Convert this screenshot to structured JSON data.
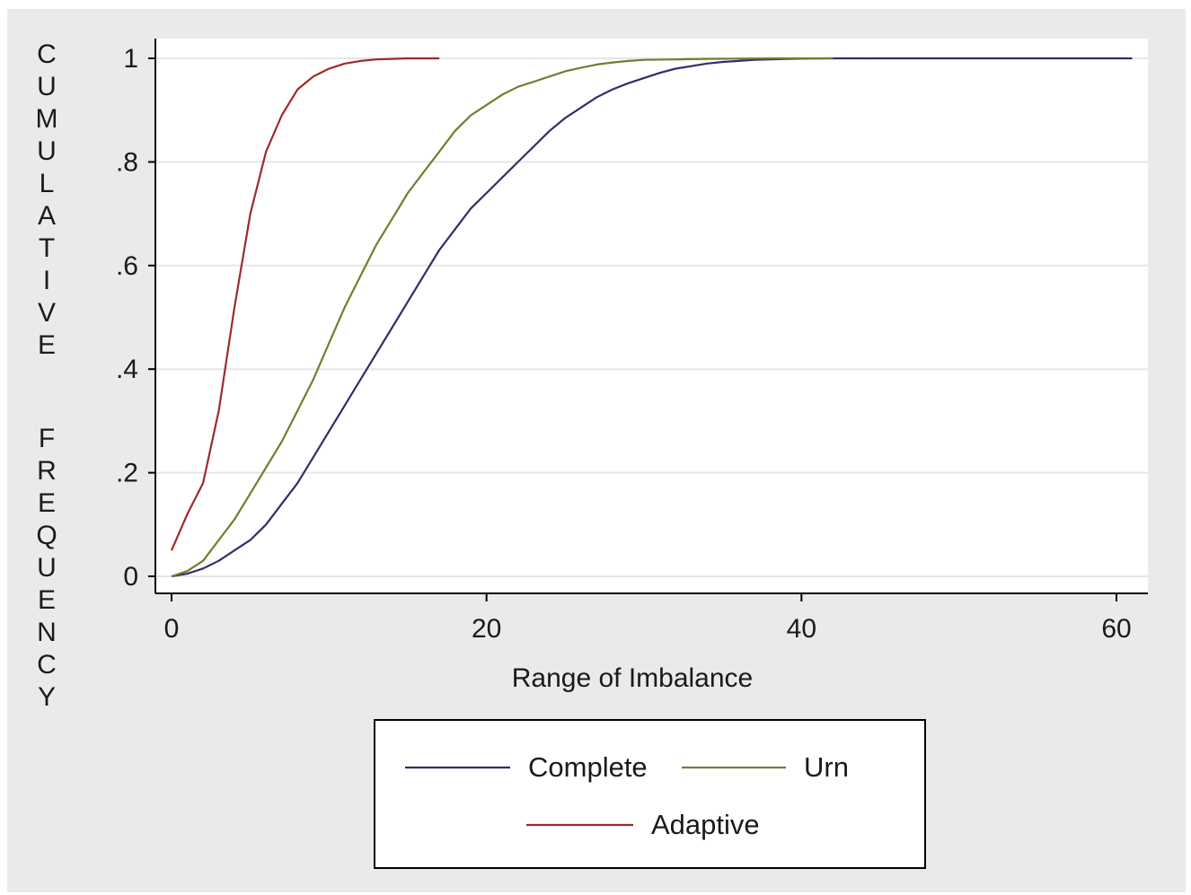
{
  "chart_data": {
    "type": "line",
    "title": "",
    "xlabel": "Range of Imbalance",
    "ylabel": "CUMULATIVE FREQUENCY",
    "xlim": [
      0,
      62
    ],
    "ylim": [
      0,
      1
    ],
    "xticks": [
      0,
      20,
      40,
      60
    ],
    "xtick_labels": [
      "0",
      "20",
      "40",
      "60"
    ],
    "yticks": [
      0,
      0.2,
      0.4,
      0.6,
      0.8,
      1
    ],
    "ytick_labels": [
      "0",
      ".2",
      ".4",
      ".6",
      ".8",
      "1"
    ],
    "grid": true,
    "legend_position": "bottom",
    "series": [
      {
        "name": "Complete",
        "color": "#2d2f6b",
        "x": [
          0,
          1,
          2,
          3,
          4,
          5,
          6,
          7,
          8,
          9,
          10,
          11,
          12,
          13,
          14,
          15,
          16,
          17,
          18,
          19,
          20,
          21,
          22,
          23,
          24,
          25,
          26,
          27,
          28,
          29,
          30,
          31,
          32,
          33,
          34,
          35,
          36,
          37,
          38,
          39,
          40,
          42,
          44,
          50,
          61
        ],
        "y": [
          0,
          0.005,
          0.015,
          0.03,
          0.05,
          0.07,
          0.1,
          0.14,
          0.18,
          0.23,
          0.28,
          0.33,
          0.38,
          0.43,
          0.48,
          0.53,
          0.58,
          0.63,
          0.67,
          0.71,
          0.74,
          0.77,
          0.8,
          0.83,
          0.86,
          0.885,
          0.905,
          0.925,
          0.94,
          0.952,
          0.962,
          0.972,
          0.98,
          0.985,
          0.99,
          0.993,
          0.995,
          0.997,
          0.998,
          0.999,
          0.9995,
          1,
          1,
          1,
          1
        ]
      },
      {
        "name": "Urn",
        "color": "#7a7a2e",
        "x": [
          0,
          1,
          2,
          3,
          4,
          5,
          6,
          7,
          8,
          9,
          10,
          11,
          12,
          13,
          14,
          15,
          16,
          17,
          18,
          19,
          20,
          21,
          22,
          23,
          24,
          25,
          26,
          27,
          28,
          29,
          30,
          32,
          34,
          36,
          38,
          40,
          42
        ],
        "y": [
          0,
          0.01,
          0.03,
          0.07,
          0.11,
          0.16,
          0.21,
          0.26,
          0.32,
          0.38,
          0.45,
          0.52,
          0.58,
          0.64,
          0.69,
          0.74,
          0.78,
          0.82,
          0.86,
          0.89,
          0.91,
          0.93,
          0.945,
          0.955,
          0.965,
          0.975,
          0.982,
          0.988,
          0.992,
          0.995,
          0.997,
          0.998,
          0.999,
          0.9995,
          1,
          1,
          1
        ]
      },
      {
        "name": "Adaptive",
        "color": "#9e2a2a",
        "x": [
          0,
          1,
          2,
          3,
          4,
          5,
          6,
          7,
          8,
          9,
          10,
          11,
          12,
          13,
          14,
          15,
          16,
          17
        ],
        "y": [
          0.05,
          0.12,
          0.18,
          0.32,
          0.52,
          0.7,
          0.82,
          0.89,
          0.94,
          0.965,
          0.98,
          0.99,
          0.995,
          0.998,
          0.999,
          1,
          1,
          1
        ]
      }
    ]
  }
}
